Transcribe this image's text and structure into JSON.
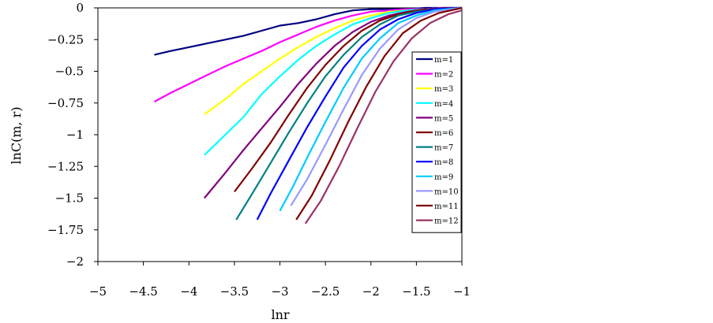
{
  "chart_data": {
    "type": "line",
    "title": "",
    "xlabel": "lnr",
    "ylabel": "lnC(m, r)",
    "xlim": [
      -5,
      -1
    ],
    "ylim": [
      -2,
      0
    ],
    "xticks": [
      -5,
      -4.5,
      -4,
      -3.5,
      -3,
      -2.5,
      -2,
      -1.5,
      -1
    ],
    "yticks": [
      0,
      -0.25,
      -0.5,
      -0.75,
      -1,
      -1.25,
      -1.5,
      -1.75,
      -2
    ],
    "xtick_labels": [
      "−5",
      "−4.5",
      "−4",
      "−3.5",
      "−3",
      "−2.5",
      "−2",
      "−1.5",
      "−1"
    ],
    "ytick_labels": [
      "0",
      "−0.25",
      "−0.5",
      "−0.75",
      "−1",
      "−1.25",
      "−1.5",
      "−1.75",
      "−2"
    ],
    "grid": false,
    "legend_position": "right",
    "series": [
      {
        "name": "m=1",
        "color": "#000080",
        "points": [
          [
            -4.38,
            -0.37
          ],
          [
            -4.2,
            -0.34
          ],
          [
            -4.0,
            -0.31
          ],
          [
            -3.8,
            -0.28
          ],
          [
            -3.6,
            -0.25
          ],
          [
            -3.4,
            -0.22
          ],
          [
            -3.2,
            -0.18
          ],
          [
            -3.0,
            -0.14
          ],
          [
            -2.8,
            -0.12
          ],
          [
            -2.6,
            -0.09
          ],
          [
            -2.4,
            -0.05
          ],
          [
            -2.2,
            -0.02
          ],
          [
            -2.0,
            -0.01
          ],
          [
            -1.8,
            -0.01
          ],
          [
            -1.6,
            -0.01
          ],
          [
            -1.4,
            0.0
          ],
          [
            -1.2,
            0.0
          ],
          [
            -1.0,
            0.0
          ]
        ]
      },
      {
        "name": "m=2",
        "color": "#ff00ff",
        "points": [
          [
            -4.38,
            -0.74
          ],
          [
            -4.2,
            -0.67
          ],
          [
            -4.0,
            -0.6
          ],
          [
            -3.8,
            -0.53
          ],
          [
            -3.6,
            -0.46
          ],
          [
            -3.4,
            -0.4
          ],
          [
            -3.2,
            -0.34
          ],
          [
            -3.0,
            -0.27
          ],
          [
            -2.8,
            -0.21
          ],
          [
            -2.6,
            -0.15
          ],
          [
            -2.4,
            -0.1
          ],
          [
            -2.2,
            -0.06
          ],
          [
            -2.0,
            -0.03
          ],
          [
            -1.8,
            -0.02
          ],
          [
            -1.6,
            -0.01
          ],
          [
            -1.4,
            -0.01
          ],
          [
            -1.2,
            0.0
          ],
          [
            -1.0,
            0.0
          ]
        ]
      },
      {
        "name": "m=3",
        "color": "#ffff00",
        "points": [
          [
            -3.83,
            -0.84
          ],
          [
            -3.6,
            -0.72
          ],
          [
            -3.4,
            -0.6
          ],
          [
            -3.2,
            -0.5
          ],
          [
            -3.0,
            -0.4
          ],
          [
            -2.8,
            -0.31
          ],
          [
            -2.6,
            -0.23
          ],
          [
            -2.4,
            -0.16
          ],
          [
            -2.2,
            -0.1
          ],
          [
            -2.0,
            -0.06
          ],
          [
            -1.8,
            -0.03
          ],
          [
            -1.6,
            -0.02
          ],
          [
            -1.4,
            -0.01
          ],
          [
            -1.2,
            0.0
          ],
          [
            -1.0,
            0.0
          ]
        ]
      },
      {
        "name": "m=4",
        "color": "#00ffff",
        "points": [
          [
            -3.83,
            -1.16
          ],
          [
            -3.6,
            -1.0
          ],
          [
            -3.4,
            -0.86
          ],
          [
            -3.2,
            -0.68
          ],
          [
            -3.0,
            -0.54
          ],
          [
            -2.8,
            -0.41
          ],
          [
            -2.6,
            -0.3
          ],
          [
            -2.4,
            -0.21
          ],
          [
            -2.2,
            -0.13
          ],
          [
            -2.0,
            -0.08
          ],
          [
            -1.8,
            -0.04
          ],
          [
            -1.6,
            -0.02
          ],
          [
            -1.4,
            -0.01
          ],
          [
            -1.2,
            0.0
          ],
          [
            -1.0,
            0.0
          ]
        ]
      },
      {
        "name": "m=5",
        "color": "#800080",
        "points": [
          [
            -3.83,
            -1.5
          ],
          [
            -3.6,
            -1.3
          ],
          [
            -3.4,
            -1.12
          ],
          [
            -3.2,
            -0.95
          ],
          [
            -3.0,
            -0.78
          ],
          [
            -2.8,
            -0.6
          ],
          [
            -2.6,
            -0.44
          ],
          [
            -2.4,
            -0.3
          ],
          [
            -2.2,
            -0.19
          ],
          [
            -2.0,
            -0.11
          ],
          [
            -1.8,
            -0.06
          ],
          [
            -1.6,
            -0.03
          ],
          [
            -1.4,
            -0.01
          ],
          [
            -1.2,
            0.0
          ],
          [
            -1.0,
            0.0
          ]
        ]
      },
      {
        "name": "m=6",
        "color": "#800000",
        "points": [
          [
            -3.5,
            -1.45
          ],
          [
            -3.3,
            -1.26
          ],
          [
            -3.1,
            -1.06
          ],
          [
            -2.9,
            -0.84
          ],
          [
            -2.7,
            -0.63
          ],
          [
            -2.5,
            -0.45
          ],
          [
            -2.3,
            -0.3
          ],
          [
            -2.1,
            -0.18
          ],
          [
            -1.9,
            -0.1
          ],
          [
            -1.7,
            -0.05
          ],
          [
            -1.5,
            -0.02
          ],
          [
            -1.3,
            -0.01
          ],
          [
            -1.0,
            0.0
          ]
        ]
      },
      {
        "name": "m=7",
        "color": "#008080",
        "points": [
          [
            -3.48,
            -1.67
          ],
          [
            -3.3,
            -1.46
          ],
          [
            -3.1,
            -1.22
          ],
          [
            -2.9,
            -0.98
          ],
          [
            -2.7,
            -0.75
          ],
          [
            -2.5,
            -0.54
          ],
          [
            -2.3,
            -0.37
          ],
          [
            -2.1,
            -0.23
          ],
          [
            -1.9,
            -0.13
          ],
          [
            -1.7,
            -0.06
          ],
          [
            -1.5,
            -0.03
          ],
          [
            -1.3,
            -0.01
          ],
          [
            -1.0,
            0.0
          ]
        ]
      },
      {
        "name": "m=8",
        "color": "#0000ff",
        "points": [
          [
            -3.25,
            -1.67
          ],
          [
            -3.1,
            -1.46
          ],
          [
            -2.9,
            -1.2
          ],
          [
            -2.7,
            -0.94
          ],
          [
            -2.5,
            -0.7
          ],
          [
            -2.3,
            -0.47
          ],
          [
            -2.1,
            -0.3
          ],
          [
            -1.9,
            -0.17
          ],
          [
            -1.7,
            -0.09
          ],
          [
            -1.5,
            -0.04
          ],
          [
            -1.3,
            -0.01
          ],
          [
            -1.0,
            0.0
          ]
        ]
      },
      {
        "name": "m=9",
        "color": "#00ccff",
        "points": [
          [
            -3.0,
            -1.6
          ],
          [
            -2.85,
            -1.4
          ],
          [
            -2.7,
            -1.18
          ],
          [
            -2.5,
            -0.9
          ],
          [
            -2.3,
            -0.63
          ],
          [
            -2.1,
            -0.4
          ],
          [
            -1.9,
            -0.24
          ],
          [
            -1.7,
            -0.12
          ],
          [
            -1.5,
            -0.06
          ],
          [
            -1.3,
            -0.02
          ],
          [
            -1.0,
            0.0
          ]
        ]
      },
      {
        "name": "m=10",
        "color": "#9999ff",
        "points": [
          [
            -2.88,
            -1.56
          ],
          [
            -2.7,
            -1.35
          ],
          [
            -2.5,
            -1.08
          ],
          [
            -2.3,
            -0.8
          ],
          [
            -2.1,
            -0.53
          ],
          [
            -1.9,
            -0.32
          ],
          [
            -1.7,
            -0.17
          ],
          [
            -1.5,
            -0.08
          ],
          [
            -1.3,
            -0.03
          ],
          [
            -1.0,
            0.0
          ]
        ]
      },
      {
        "name": "m=11",
        "color": "#800000",
        "points": [
          [
            -2.82,
            -1.67
          ],
          [
            -2.65,
            -1.48
          ],
          [
            -2.45,
            -1.2
          ],
          [
            -2.25,
            -0.9
          ],
          [
            -2.05,
            -0.62
          ],
          [
            -1.85,
            -0.38
          ],
          [
            -1.65,
            -0.2
          ],
          [
            -1.45,
            -0.1
          ],
          [
            -1.25,
            -0.04
          ],
          [
            -1.0,
            0.0
          ]
        ]
      },
      {
        "name": "m=12",
        "color": "#993366",
        "points": [
          [
            -2.72,
            -1.7
          ],
          [
            -2.55,
            -1.52
          ],
          [
            -2.35,
            -1.25
          ],
          [
            -2.15,
            -0.95
          ],
          [
            -1.95,
            -0.66
          ],
          [
            -1.75,
            -0.42
          ],
          [
            -1.55,
            -0.24
          ],
          [
            -1.35,
            -0.12
          ],
          [
            -1.15,
            -0.05
          ],
          [
            -1.0,
            -0.02
          ]
        ]
      }
    ]
  }
}
